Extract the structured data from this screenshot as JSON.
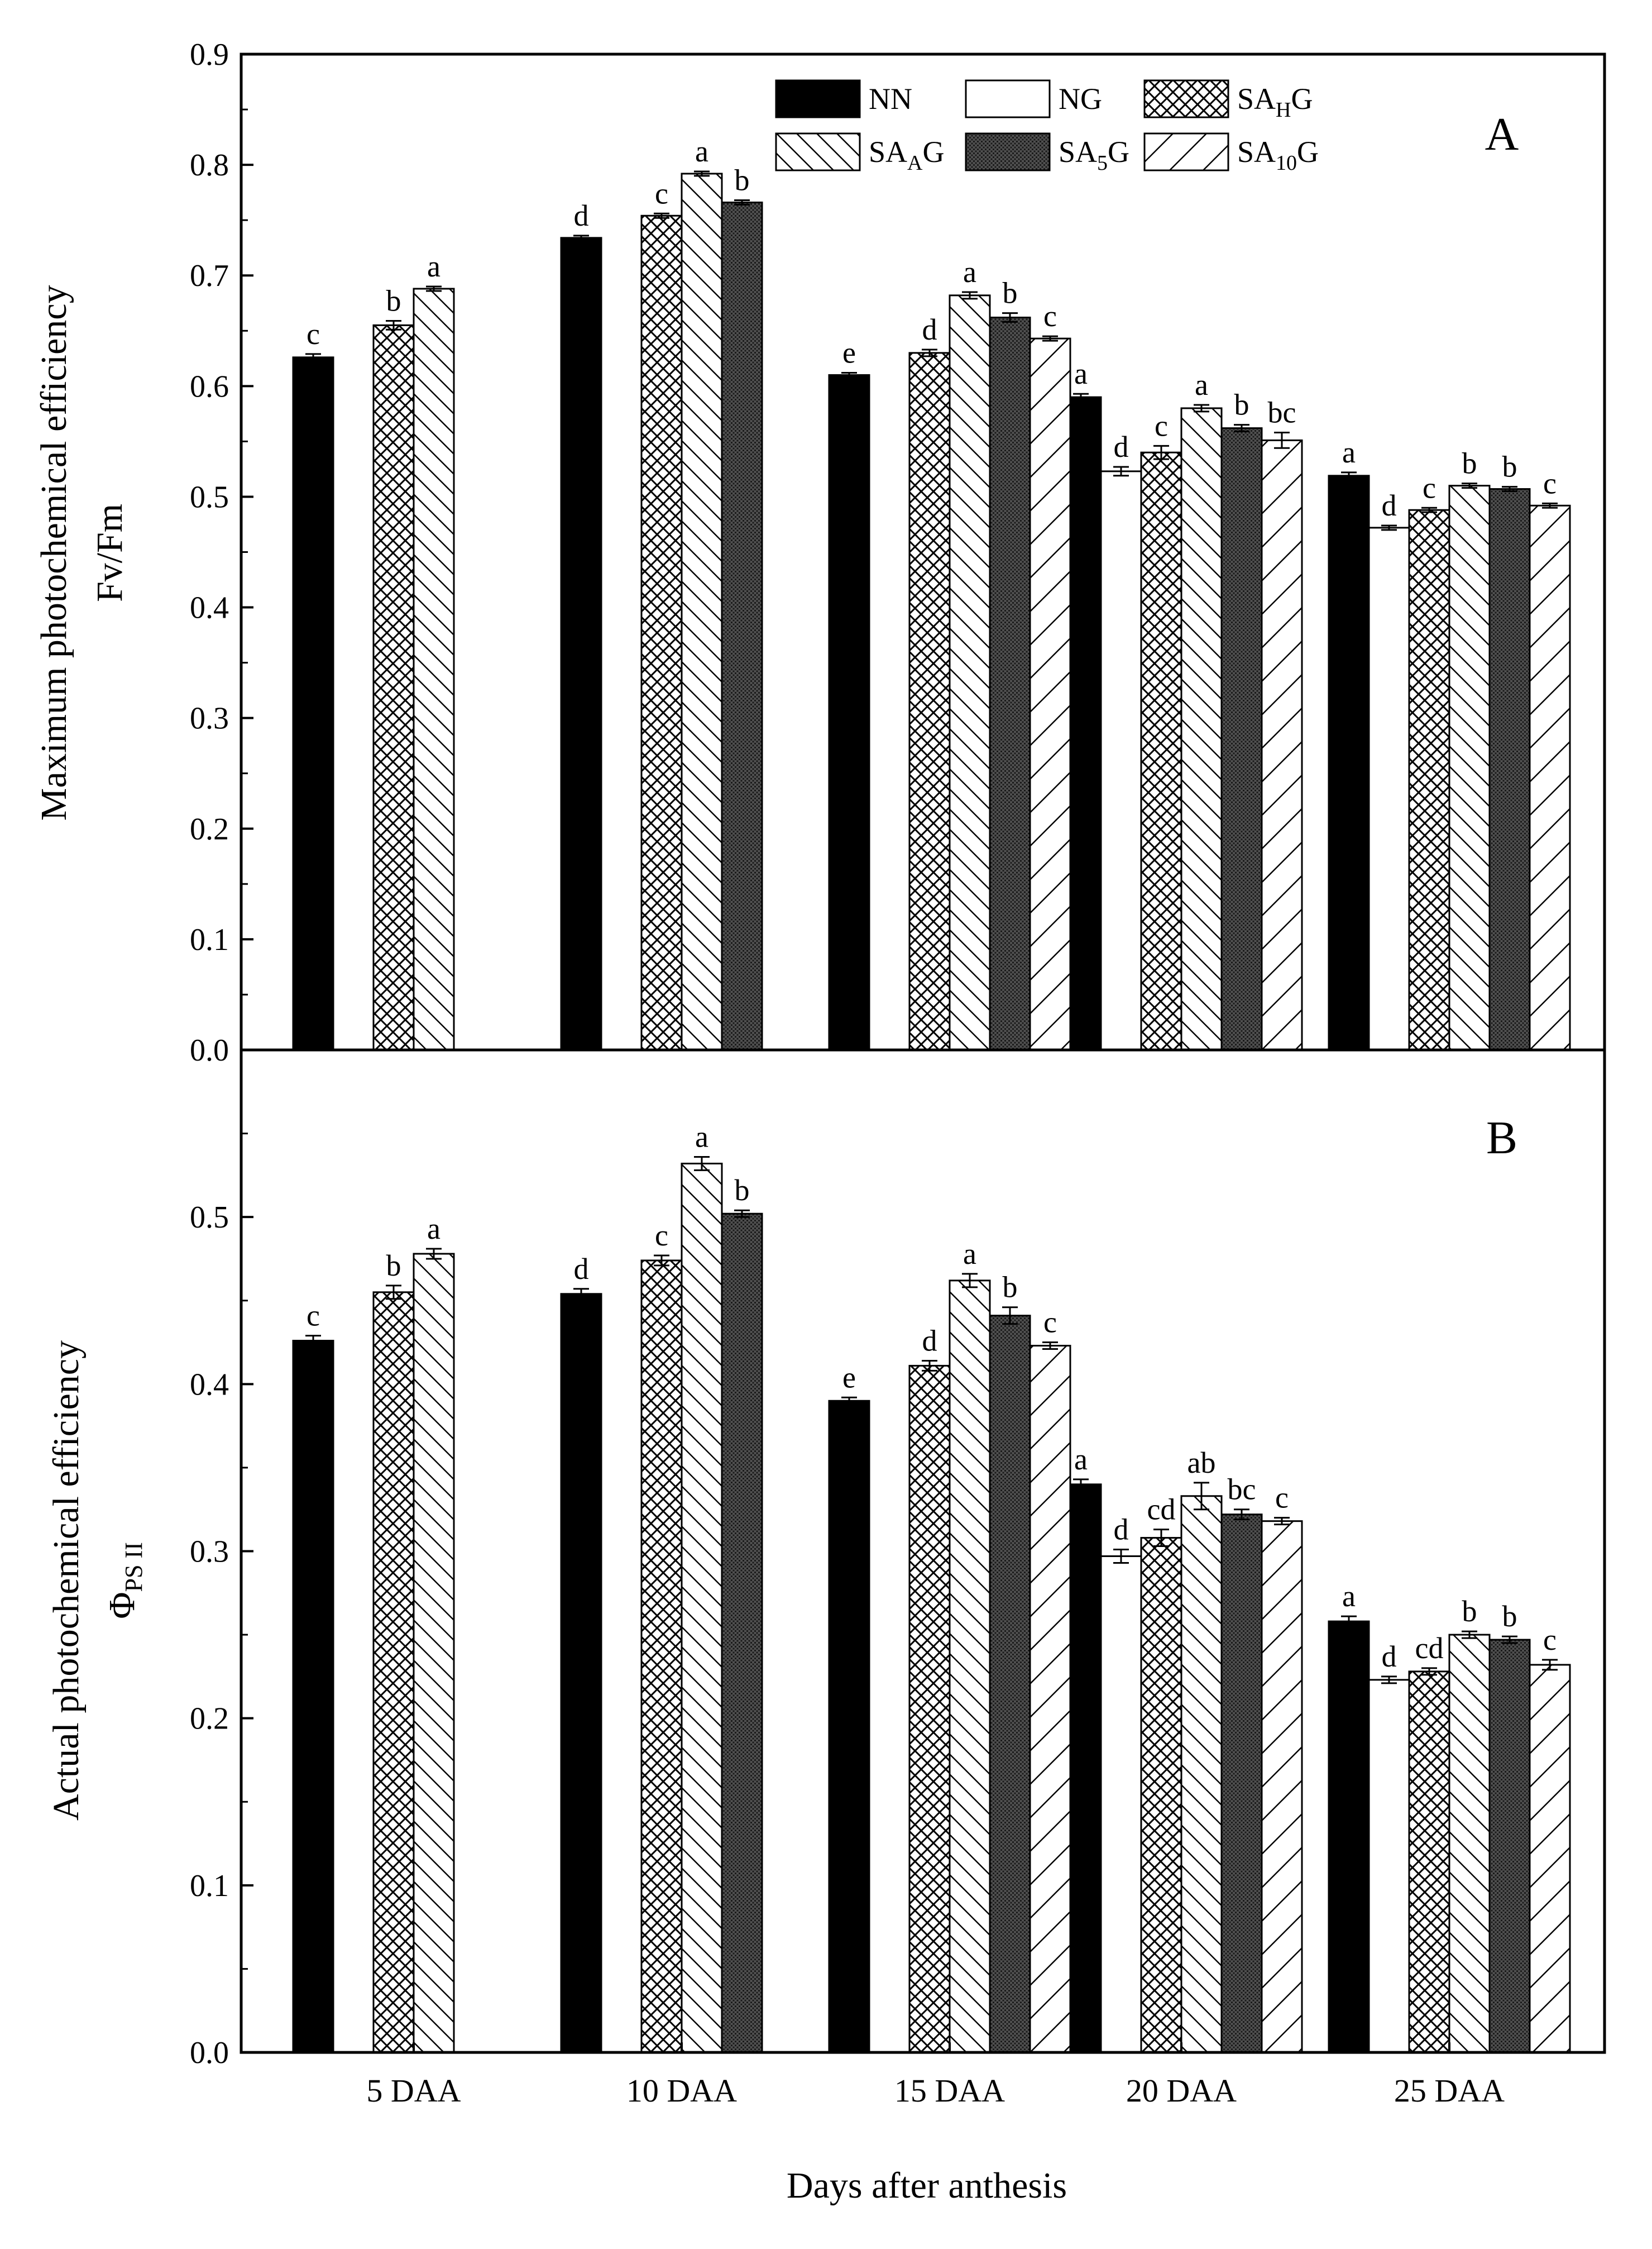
{
  "chart_data": [
    {
      "type": "bar",
      "panel": "A",
      "ylabel": "Maximum photochemical efficiency",
      "ylabel_sub": "Fv/Fm",
      "ylim": [
        0,
        0.9
      ],
      "yticks": [
        0.0,
        0.1,
        0.2,
        0.3,
        0.4,
        0.5,
        0.6,
        0.7,
        0.8,
        0.9
      ],
      "ytick_labels": [
        "0.0",
        "0.1",
        "0.2",
        "0.3",
        "0.4",
        "0.5",
        "0.6",
        "0.7",
        "0.8",
        "0.9"
      ],
      "categories": [
        "5 DAA",
        "10 DAA",
        "15 DAA",
        "20 DAA",
        "25 DAA"
      ],
      "series": [
        {
          "name": "NN",
          "values": [
            0.626,
            0.734,
            0.61,
            0.59,
            0.519
          ],
          "errors": [
            0.003,
            0.002,
            0.002,
            0.003,
            0.003
          ],
          "labels": [
            "c",
            "d",
            "e",
            "a",
            "a"
          ]
        },
        {
          "name": "NG",
          "values": [
            null,
            null,
            null,
            0.523,
            0.472
          ],
          "errors": [
            null,
            null,
            null,
            0.004,
            0.002
          ],
          "labels": [
            null,
            null,
            null,
            "d",
            "d"
          ]
        },
        {
          "name": "SAHG",
          "values": [
            0.655,
            0.754,
            0.63,
            0.54,
            0.488
          ],
          "errors": [
            0.004,
            0.002,
            0.003,
            0.006,
            0.002
          ],
          "labels": [
            "b",
            "c",
            "d",
            "c",
            "c"
          ]
        },
        {
          "name": "SAAG",
          "values": [
            0.688,
            0.792,
            0.682,
            0.58,
            0.51
          ],
          "errors": [
            0.002,
            0.002,
            0.003,
            0.003,
            0.002
          ],
          "labels": [
            "a",
            "a",
            "a",
            "a",
            "b"
          ]
        },
        {
          "name": "SA5G",
          "values": [
            null,
            0.766,
            0.662,
            0.562,
            0.507
          ],
          "errors": [
            null,
            0.002,
            0.004,
            0.003,
            0.002
          ],
          "labels": [
            null,
            "b",
            "b",
            "b",
            "b"
          ]
        },
        {
          "name": "SA10G",
          "values": [
            null,
            null,
            0.643,
            0.551,
            0.492
          ],
          "errors": [
            null,
            null,
            0.002,
            0.007,
            0.002
          ],
          "labels": [
            null,
            null,
            "c",
            "bc",
            "c"
          ]
        }
      ]
    },
    {
      "type": "bar",
      "panel": "B",
      "ylabel": "Actual photochemical efficiency",
      "ylabel_sub_main": "Φ",
      "ylabel_sub_sub": "PS II",
      "ylim": [
        0,
        0.6
      ],
      "yticks": [
        0.0,
        0.1,
        0.2,
        0.3,
        0.4,
        0.5
      ],
      "ytick_labels": [
        "0.0",
        "0.1",
        "0.2",
        "0.3",
        "0.4",
        "0.5"
      ],
      "categories": [
        "5 DAA",
        "10 DAA",
        "15 DAA",
        "20 DAA",
        "25 DAA"
      ],
      "xlabel": "Days after anthesis",
      "series": [
        {
          "name": "NN",
          "values": [
            0.426,
            0.454,
            0.39,
            0.34,
            0.258
          ],
          "errors": [
            0.003,
            0.003,
            0.002,
            0.003,
            0.003
          ],
          "labels": [
            "c",
            "d",
            "e",
            "a",
            "a"
          ]
        },
        {
          "name": "NG",
          "values": [
            null,
            null,
            null,
            0.297,
            0.223
          ],
          "errors": [
            null,
            null,
            null,
            0.004,
            0.002
          ],
          "labels": [
            null,
            null,
            null,
            "d",
            "d"
          ]
        },
        {
          "name": "SAHG",
          "values": [
            0.455,
            0.474,
            0.411,
            0.308,
            0.228
          ],
          "errors": [
            0.004,
            0.003,
            0.003,
            0.005,
            0.002
          ],
          "labels": [
            "b",
            "c",
            "d",
            "cd",
            "cd"
          ]
        },
        {
          "name": "SAAG",
          "values": [
            0.478,
            0.532,
            0.462,
            0.333,
            0.25
          ],
          "errors": [
            0.003,
            0.004,
            0.004,
            0.008,
            0.002
          ],
          "labels": [
            "a",
            "a",
            "a",
            "ab",
            "b"
          ]
        },
        {
          "name": "SA5G",
          "values": [
            null,
            0.502,
            0.441,
            0.322,
            0.247
          ],
          "errors": [
            null,
            0.002,
            0.005,
            0.003,
            0.002
          ],
          "labels": [
            null,
            "b",
            "b",
            "bc",
            "b"
          ]
        },
        {
          "name": "SA10G",
          "values": [
            null,
            null,
            0.423,
            0.318,
            0.232
          ],
          "errors": [
            null,
            null,
            0.002,
            0.002,
            0.003
          ],
          "labels": [
            null,
            null,
            "c",
            "c",
            "c"
          ]
        }
      ]
    }
  ],
  "legend": [
    {
      "key": "NN",
      "main": "NN",
      "sub": "",
      "suffix": ""
    },
    {
      "key": "NG",
      "main": "NG",
      "sub": "",
      "suffix": ""
    },
    {
      "key": "SAHG",
      "main": "SA",
      "sub": "H",
      "suffix": "G"
    },
    {
      "key": "SAAG",
      "main": "SA",
      "sub": "A",
      "suffix": "G"
    },
    {
      "key": "SA5G",
      "main": "SA",
      "sub": "5",
      "suffix": "G"
    },
    {
      "key": "SA10G",
      "main": "SA",
      "sub": "10",
      "suffix": "G"
    }
  ],
  "colors": {
    "axis": "#000000",
    "background": "#ffffff",
    "solid": "#000000"
  }
}
